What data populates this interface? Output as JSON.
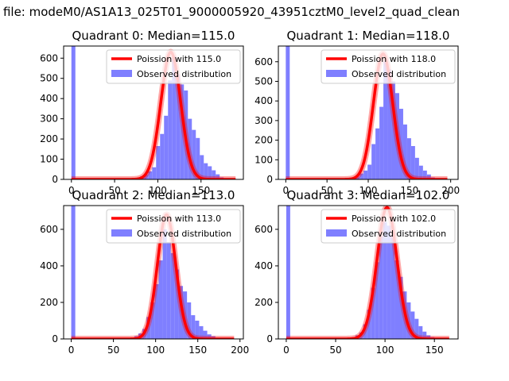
{
  "figure": {
    "suptitle": "a file: modeM0/AS1A13_025T01_9000005920_43951cztM0_level2_quad_clean"
  },
  "colors": {
    "poisson": "#ff0000",
    "observed": "#7f7fff",
    "axes": "#000000"
  },
  "chart_data": [
    {
      "type": "bar",
      "title": "Quadrant 0: Median=115.0",
      "xlabel": "",
      "ylabel": "",
      "xlim": [
        -9,
        199
      ],
      "ylim": [
        0,
        660
      ],
      "xticks": [
        0,
        50,
        100,
        150
      ],
      "yticks": [
        0,
        100,
        200,
        300,
        400,
        500,
        600
      ],
      "legend_position": "top-right",
      "series": [
        {
          "name": "Poission with 115.0",
          "kind": "line",
          "mean": 115,
          "peak": 630,
          "sigma": 11.5,
          "range": [
            0,
            190
          ]
        },
        {
          "name": "Observed distribution",
          "kind": "histogram",
          "bin_width": 4.6,
          "bins": [
            {
              "x": 0,
              "y": 660
            },
            {
              "x": 75,
              "y": 5
            },
            {
              "x": 79.6,
              "y": 15
            },
            {
              "x": 84.2,
              "y": 25
            },
            {
              "x": 88.8,
              "y": 40
            },
            {
              "x": 93.4,
              "y": 60
            },
            {
              "x": 98,
              "y": 165
            },
            {
              "x": 102.6,
              "y": 225
            },
            {
              "x": 107.2,
              "y": 315
            },
            {
              "x": 111.8,
              "y": 490
            },
            {
              "x": 116.4,
              "y": 610
            },
            {
              "x": 121,
              "y": 520
            },
            {
              "x": 125.6,
              "y": 470
            },
            {
              "x": 130.2,
              "y": 440
            },
            {
              "x": 134.8,
              "y": 300
            },
            {
              "x": 139.4,
              "y": 245
            },
            {
              "x": 144,
              "y": 205
            },
            {
              "x": 148.6,
              "y": 120
            },
            {
              "x": 153.2,
              "y": 80
            },
            {
              "x": 157.8,
              "y": 65
            },
            {
              "x": 162.4,
              "y": 45
            },
            {
              "x": 167,
              "y": 25
            },
            {
              "x": 171.6,
              "y": 10
            },
            {
              "x": 176.2,
              "y": 5
            }
          ]
        }
      ]
    },
    {
      "type": "bar",
      "title": "Quadrant 1: Median=118.0",
      "xlabel": "",
      "ylabel": "",
      "xlim": [
        -9,
        209
      ],
      "ylim": [
        0,
        680
      ],
      "xticks": [
        0,
        50,
        100,
        150,
        200
      ],
      "yticks": [
        0,
        100,
        200,
        300,
        400,
        500,
        600
      ],
      "legend_position": "top-right",
      "series": [
        {
          "name": "Poission with 118.0",
          "kind": "line",
          "mean": 118,
          "peak": 640,
          "sigma": 11.7,
          "range": [
            0,
            196
          ]
        },
        {
          "name": "Observed distribution",
          "kind": "histogram",
          "bin_width": 4.8,
          "bins": [
            {
              "x": 0,
              "y": 680
            },
            {
              "x": 80,
              "y": 5
            },
            {
              "x": 84.8,
              "y": 15
            },
            {
              "x": 89.6,
              "y": 30
            },
            {
              "x": 94.4,
              "y": 45
            },
            {
              "x": 99.2,
              "y": 75
            },
            {
              "x": 104,
              "y": 180
            },
            {
              "x": 108.8,
              "y": 260
            },
            {
              "x": 113.6,
              "y": 370
            },
            {
              "x": 118.4,
              "y": 600
            },
            {
              "x": 123.2,
              "y": 560
            },
            {
              "x": 128,
              "y": 500
            },
            {
              "x": 132.8,
              "y": 440
            },
            {
              "x": 137.6,
              "y": 360
            },
            {
              "x": 142.4,
              "y": 280
            },
            {
              "x": 147.2,
              "y": 210
            },
            {
              "x": 152,
              "y": 170
            },
            {
              "x": 156.8,
              "y": 110
            },
            {
              "x": 161.6,
              "y": 70
            },
            {
              "x": 166.4,
              "y": 45
            },
            {
              "x": 171.2,
              "y": 25
            },
            {
              "x": 176,
              "y": 10
            },
            {
              "x": 180.8,
              "y": 5
            }
          ]
        }
      ]
    },
    {
      "type": "bar",
      "title": "Quadrant 2: Median=113.0",
      "xlabel": "",
      "ylabel": "",
      "xlim": [
        -9,
        204
      ],
      "ylim": [
        0,
        730
      ],
      "xticks": [
        0,
        50,
        100,
        150,
        200
      ],
      "yticks": [
        0,
        200,
        400,
        600
      ],
      "legend_position": "top-right",
      "series": [
        {
          "name": "Poission with 113.0",
          "kind": "line",
          "mean": 113,
          "peak": 680,
          "sigma": 10.8,
          "range": [
            0,
            193
          ]
        },
        {
          "name": "Observed distribution",
          "kind": "histogram",
          "bin_width": 4.8,
          "bins": [
            {
              "x": 0,
              "y": 730
            },
            {
              "x": 70,
              "y": 5
            },
            {
              "x": 74.8,
              "y": 15
            },
            {
              "x": 79.6,
              "y": 30
            },
            {
              "x": 84.4,
              "y": 55
            },
            {
              "x": 89.2,
              "y": 120
            },
            {
              "x": 94,
              "y": 200
            },
            {
              "x": 98.8,
              "y": 300
            },
            {
              "x": 103.6,
              "y": 430
            },
            {
              "x": 108.4,
              "y": 600
            },
            {
              "x": 113.2,
              "y": 530
            },
            {
              "x": 118,
              "y": 470
            },
            {
              "x": 122.8,
              "y": 380
            },
            {
              "x": 127.6,
              "y": 290
            },
            {
              "x": 132.4,
              "y": 260
            },
            {
              "x": 137.2,
              "y": 200
            },
            {
              "x": 142,
              "y": 130
            },
            {
              "x": 146.8,
              "y": 100
            },
            {
              "x": 151.6,
              "y": 70
            },
            {
              "x": 156.4,
              "y": 45
            },
            {
              "x": 161.2,
              "y": 25
            },
            {
              "x": 166,
              "y": 15
            },
            {
              "x": 170.8,
              "y": 5
            }
          ]
        }
      ]
    },
    {
      "type": "bar",
      "title": "Quadrant 3: Median=102.0",
      "xlabel": "",
      "ylabel": "",
      "xlim": [
        -8,
        174
      ],
      "ylim": [
        0,
        730
      ],
      "xticks": [
        0,
        50,
        100,
        150
      ],
      "yticks": [
        0,
        200,
        400,
        600
      ],
      "legend_position": "top-right",
      "series": [
        {
          "name": "Poission with 102.0",
          "kind": "line",
          "mean": 102,
          "peak": 720,
          "sigma": 10.1,
          "range": [
            0,
            165
          ]
        },
        {
          "name": "Observed distribution",
          "kind": "histogram",
          "bin_width": 4.0,
          "bins": [
            {
              "x": 0,
              "y": 730
            },
            {
              "x": 62,
              "y": 5
            },
            {
              "x": 66,
              "y": 10
            },
            {
              "x": 70,
              "y": 20
            },
            {
              "x": 74,
              "y": 35
            },
            {
              "x": 78,
              "y": 80
            },
            {
              "x": 82,
              "y": 160
            },
            {
              "x": 86,
              "y": 280
            },
            {
              "x": 90,
              "y": 420
            },
            {
              "x": 94,
              "y": 560
            },
            {
              "x": 98,
              "y": 640
            },
            {
              "x": 102,
              "y": 620
            },
            {
              "x": 106,
              "y": 560
            },
            {
              "x": 110,
              "y": 430
            },
            {
              "x": 114,
              "y": 340
            },
            {
              "x": 118,
              "y": 260
            },
            {
              "x": 122,
              "y": 200
            },
            {
              "x": 126,
              "y": 150
            },
            {
              "x": 130,
              "y": 110
            },
            {
              "x": 134,
              "y": 70
            },
            {
              "x": 138,
              "y": 40
            },
            {
              "x": 142,
              "y": 20
            },
            {
              "x": 146,
              "y": 10
            },
            {
              "x": 150,
              "y": 5
            }
          ]
        }
      ]
    }
  ]
}
